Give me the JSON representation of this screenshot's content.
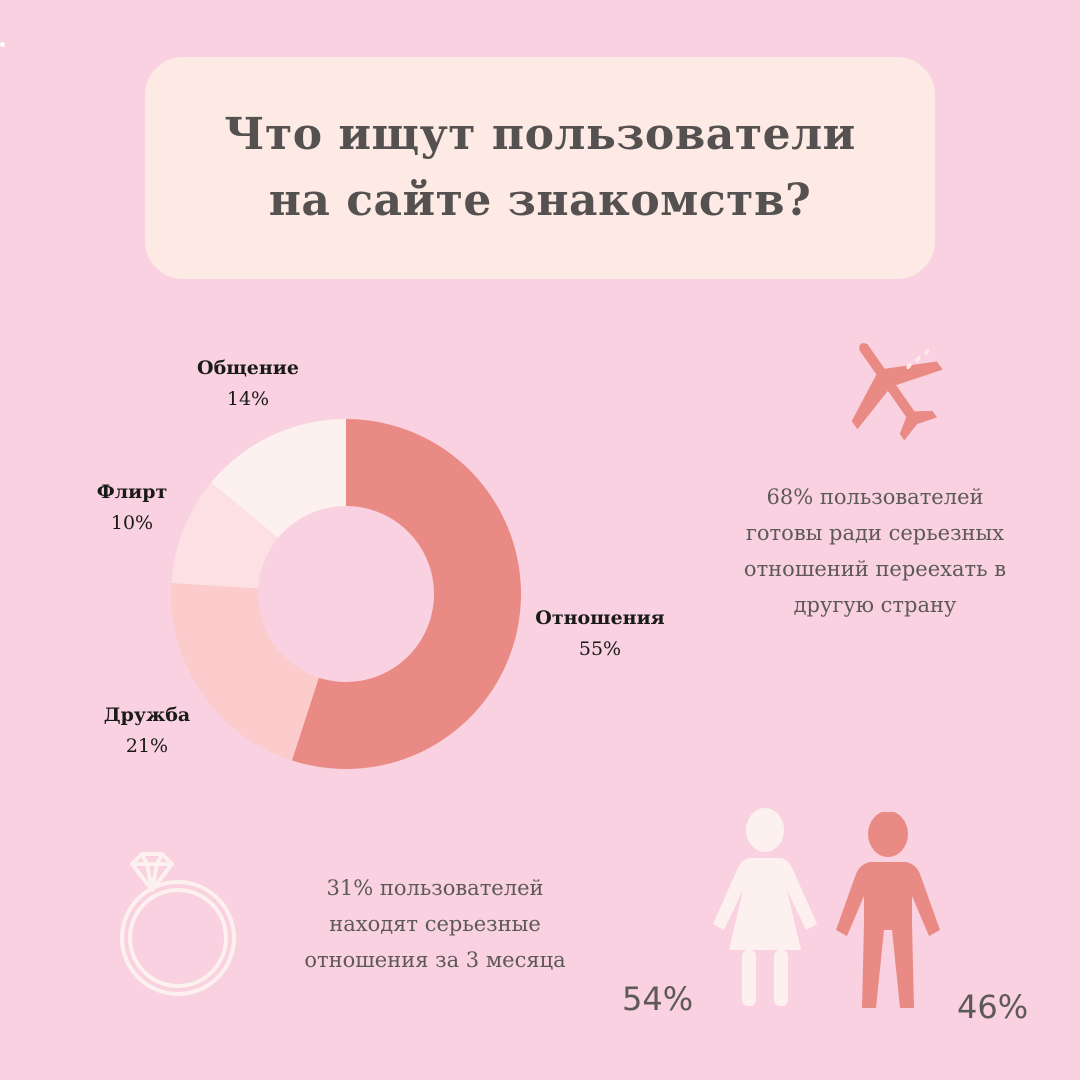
{
  "title": {
    "line1": "Что ищут пользователи",
    "line2": "на сайте знакомств?"
  },
  "chart_data": {
    "type": "pie",
    "style": "donut",
    "slices": [
      {
        "label": "Отношения",
        "value": 55,
        "value_label": "55%",
        "color": "#e98a84"
      },
      {
        "label": "Дружба",
        "value": 21,
        "value_label": "21%",
        "color": "#fccbcb"
      },
      {
        "label": "Флирт",
        "value": 10,
        "value_label": "10%",
        "color": "#fde0e3"
      },
      {
        "label": "Общение",
        "value": 14,
        "value_label": "14%",
        "color": "#fdf1ef"
      }
    ],
    "center_color": "#f9d1e1"
  },
  "stats": {
    "relocate": {
      "line1": "68% пользователей",
      "line2": "готовы ради серьезных",
      "line3": "отношений переехать в",
      "line4": "другую страну"
    },
    "three_months": {
      "line1": "31% пользователей",
      "line2": "находят серьезные",
      "line3": "отношения за 3 месяца"
    },
    "gender": {
      "female_pct": "54%",
      "male_pct": "46%"
    }
  },
  "icons": {
    "plane": "airplane-icon",
    "ring": "ring-icon",
    "woman": "woman-icon",
    "man": "man-icon"
  },
  "colors": {
    "background": "#f9d1e1",
    "title_box": "#fdeae5",
    "accent": "#e98a84",
    "light": "#fdf1ef"
  }
}
